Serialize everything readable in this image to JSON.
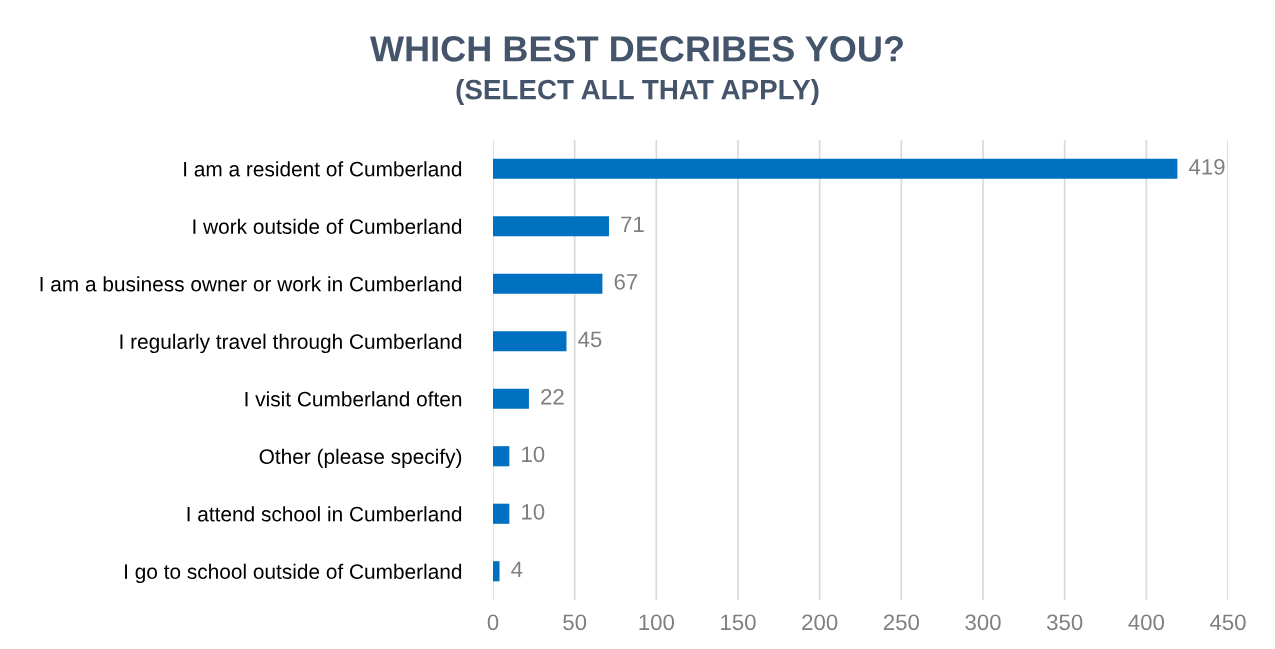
{
  "chart_data": {
    "type": "bar",
    "orientation": "horizontal",
    "title": "WHICH BEST DECRIBES YOU?",
    "subtitle": "(SELECT ALL THAT APPLY)",
    "categories": [
      "I am a resident of Cumberland",
      "I work outside of Cumberland",
      "I am a business owner or work in Cumberland",
      "I regularly travel through Cumberland",
      "I visit Cumberland often",
      "Other (please specify)",
      "I attend school in Cumberland",
      "I go to school outside of Cumberland"
    ],
    "values": [
      419,
      71,
      67,
      45,
      22,
      10,
      10,
      4
    ],
    "color": "#0070c0",
    "xlim": [
      0,
      450
    ],
    "xticks": [
      0,
      50,
      100,
      150,
      200,
      250,
      300,
      350,
      400,
      450
    ],
    "grid": "x",
    "data_labels": true
  }
}
